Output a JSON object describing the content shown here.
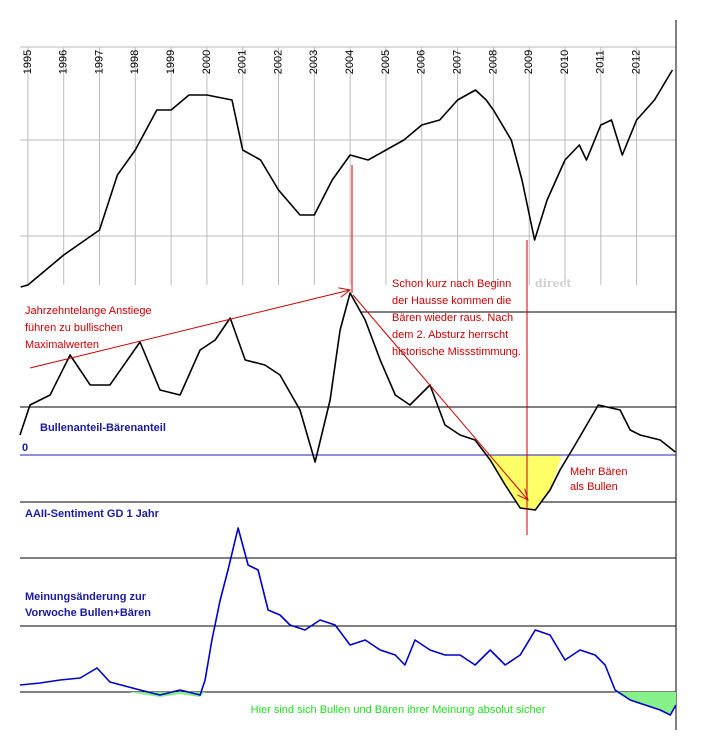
{
  "chart_data": [
    {
      "type": "line",
      "xlim": [
        1994.78,
        2013.1
      ],
      "xticks": [
        1995,
        1996,
        1997,
        1998,
        1999,
        2000,
        2001,
        2002,
        2003,
        2004,
        2005,
        2006,
        2007,
        2008,
        2009,
        2010,
        2011,
        2012
      ],
      "ylim": [
        0,
        260
      ],
      "watermark": "direct",
      "series": [
        {
          "color": "#000000",
          "x": [
            1994.8,
            1995,
            1996,
            1997,
            1997.5,
            1998,
            1998.6,
            1999,
            1999.5,
            2000,
            2000.7,
            2001,
            2001.5,
            2002,
            2002.6,
            2003,
            2003.5,
            2004,
            2004.5,
            2005,
            2005.5,
            2006,
            2006.5,
            2007,
            2007.5,
            2007.8,
            2008,
            2008.5,
            2008.8,
            2009.15,
            2009.5,
            2010,
            2010.4,
            2010.6,
            2011,
            2011.3,
            2011.6,
            2012,
            2012.5,
            2013
          ],
          "values": [
            13,
            15,
            45,
            70,
            125,
            150,
            190,
            190,
            205,
            205,
            200,
            150,
            140,
            110,
            85,
            85,
            120,
            145,
            140,
            150,
            160,
            175,
            180,
            200,
            210,
            200,
            190,
            160,
            120,
            60,
            100,
            140,
            155,
            140,
            175,
            180,
            145,
            180,
            200,
            230
          ]
        }
      ]
    },
    {
      "type": "line",
      "title": "AAII-Sentiment GD 1 Jahr",
      "xlim": [
        1994.78,
        2013.1
      ],
      "ylim": [
        -60,
        170
      ],
      "yticks": [
        0
      ],
      "series": [
        {
          "name": "Bullenanteil-Bärenanteil",
          "color": "#000000",
          "x": [
            1994.78,
            1995.06,
            1995.62,
            1996.18,
            1996.74,
            1997.29,
            1998.13,
            1998.69,
            1999.25,
            1999.81,
            2000.23,
            2000.65,
            2001.07,
            2001.62,
            2002.04,
            2002.6,
            2003.02,
            2003.44,
            2003.72,
            2004.0,
            2004.42,
            2004.84,
            2005.26,
            2005.67,
            2006.23,
            2006.65,
            2007.07,
            2007.49,
            2007.91,
            2008.33,
            2008.75,
            2009.17,
            2009.58,
            2009.86,
            2010.28,
            2010.93,
            2011.54,
            2011.82,
            2012.1,
            2012.66,
            2013.08
          ],
          "values": [
            20,
            50,
            60,
            100,
            70,
            70,
            113,
            65,
            60,
            105,
            115,
            137,
            95,
            90,
            80,
            45,
            -7,
            55,
            125,
            162,
            135,
            95,
            60,
            50,
            70,
            30,
            20,
            15,
            -5,
            -30,
            -53,
            -55,
            -35,
            -15,
            10,
            50,
            45,
            25,
            20,
            15,
            3
          ]
        }
      ]
    },
    {
      "type": "line",
      "title_lines": [
        "Meinungsänderung zur",
        "Vorwoche Bullen+Bären"
      ],
      "xlim": [
        1994.78,
        2013.1
      ],
      "ylim": [
        -30,
        170
      ],
      "series": [
        {
          "color": "#0000cc",
          "x": [
            1994.78,
            1995.34,
            1995.9,
            1996.46,
            1996.93,
            1997.29,
            1998.13,
            1998.69,
            1999.25,
            1999.81,
            1999.95,
            2000.14,
            2000.37,
            2000.59,
            2000.87,
            2001.15,
            2001.43,
            2001.71,
            2002.04,
            2002.32,
            2002.74,
            2003.16,
            2003.58,
            2004.0,
            2004.42,
            2004.84,
            2005.26,
            2005.53,
            2005.81,
            2006.23,
            2006.65,
            2007.07,
            2007.49,
            2007.91,
            2008.33,
            2008.75,
            2009.17,
            2009.58,
            2010.0,
            2010.42,
            2010.84,
            2011.12,
            2011.4,
            2011.82,
            2012.24,
            2012.66,
            2012.94,
            2013.1
          ],
          "values": [
            7,
            9,
            12,
            14,
            24,
            10,
            2,
            -3,
            2,
            -3,
            12,
            52,
            92,
            122,
            164,
            127,
            122,
            82,
            77,
            67,
            62,
            72,
            67,
            47,
            52,
            42,
            37,
            27,
            52,
            42,
            37,
            37,
            27,
            42,
            27,
            37,
            62,
            57,
            32,
            42,
            37,
            27,
            2,
            -8,
            -13,
            -18,
            -23,
            -13
          ]
        }
      ]
    }
  ],
  "annotations": [
    {
      "lines": [
        "Jahrzehntelange Anstiege",
        "führen zu bullischen",
        "Maximalwerten"
      ],
      "color": "#cc0000"
    },
    {
      "lines": [
        "Schon kurz nach Beginn",
        "der Hausse kommen die",
        "Bären wieder raus. Nach",
        "dem 2. Absturz herrscht",
        "historische Missstimmung."
      ],
      "color": "#cc0000"
    },
    {
      "lines": [
        "Mehr Bären",
        "als Bullen"
      ],
      "color": "#cc0000"
    },
    {
      "lines": [
        "Hier sind sich Bullen und Bären ihrer Meinung absolut sicher"
      ],
      "color": "#22dd22"
    }
  ]
}
